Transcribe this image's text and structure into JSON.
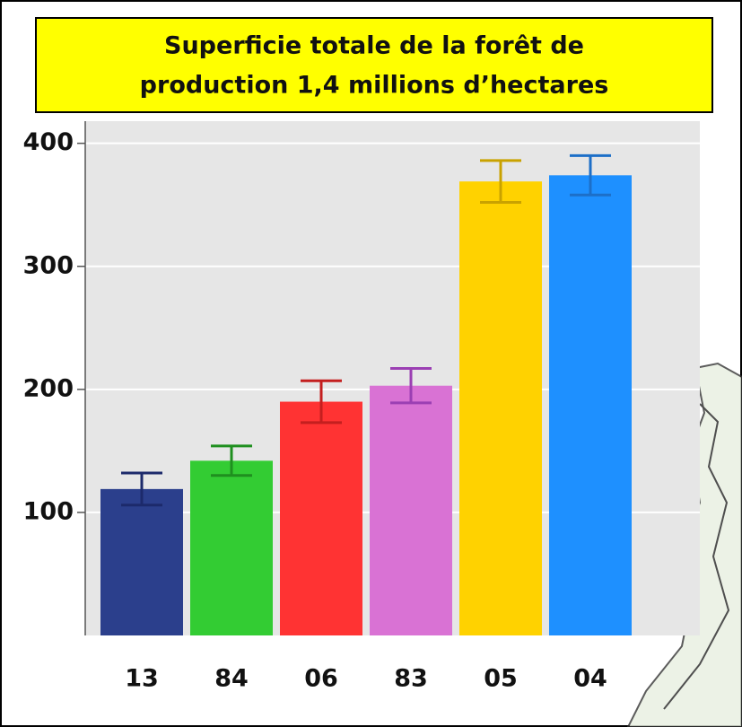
{
  "chart_data": {
    "type": "bar",
    "title": [
      "Superficie totale de la forêt de",
      "production 1,4 millions d’hectares"
    ],
    "categories": [
      "13",
      "84",
      "06",
      "83",
      "05",
      "04"
    ],
    "values": [
      119,
      142,
      190,
      203,
      369,
      374
    ],
    "errors": [
      13,
      12,
      17,
      14,
      17,
      16
    ],
    "colors": [
      "#2b3f8c",
      "#33cc33",
      "#ff3333",
      "#d972d4",
      "#ffd200",
      "#1e90ff"
    ],
    "error_colors": [
      "#1c2a6b",
      "#1f8f1f",
      "#c41f1f",
      "#9b3fb3",
      "#c9a200",
      "#1d6fc8"
    ],
    "ylim": [
      0,
      418
    ],
    "yticks": [
      100,
      200,
      300,
      400
    ],
    "grid": true
  }
}
